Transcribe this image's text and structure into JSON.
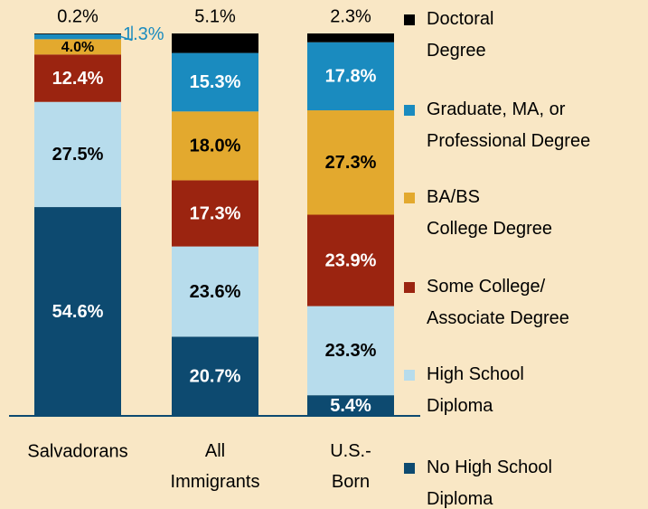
{
  "chart_data": {
    "type": "stacked_bar",
    "categories": [
      "Salvadorans",
      "All\nImmigrants",
      "U.S.-\nBorn"
    ],
    "series": [
      {
        "name": "No High School\nDiploma",
        "color": "#0d4a70",
        "values": [
          54.6,
          20.7,
          5.4
        ],
        "value_labels": [
          "54.6%",
          "20.7%",
          "5.4%"
        ]
      },
      {
        "name": "High School\nDiploma",
        "color": "#b7dcec",
        "values": [
          27.5,
          23.6,
          23.3
        ],
        "value_labels": [
          "27.5%",
          "23.6%",
          "23.3%"
        ]
      },
      {
        "name": "Some College/\nAssociate Degree",
        "color": "#9b2410",
        "values": [
          12.4,
          17.3,
          23.9
        ],
        "value_labels": [
          "12.4%",
          "17.3%",
          "23.9%"
        ]
      },
      {
        "name": "BA/BS\nCollege Degree",
        "color": "#e3a92e",
        "values": [
          4.0,
          18.0,
          27.3
        ],
        "value_labels": [
          "4.0%",
          "18.0%",
          "27.3%"
        ]
      },
      {
        "name": "Graduate, MA, or\nProfessional Degree",
        "color": "#1a8bbf",
        "values": [
          1.3,
          15.3,
          17.8
        ],
        "value_labels": [
          "1.3%",
          "15.3%",
          "17.8%"
        ]
      },
      {
        "name": "Doctoral\nDegree",
        "color": "#000000",
        "values": [
          0.2,
          5.1,
          2.3
        ],
        "value_labels": [
          "0.2%",
          "5.1%",
          "2.3%"
        ]
      }
    ]
  }
}
